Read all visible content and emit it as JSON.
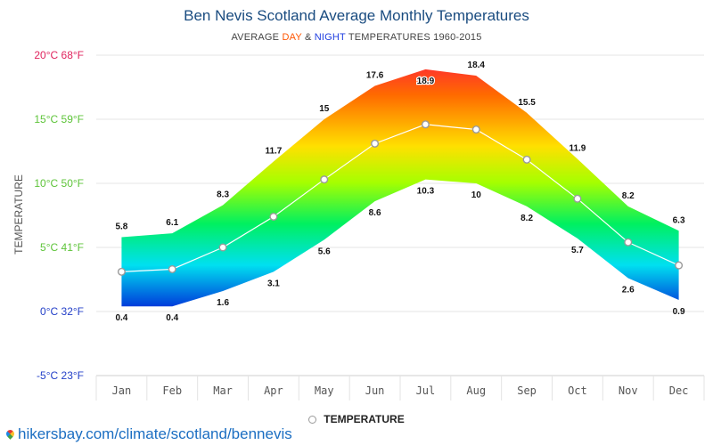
{
  "header": {
    "title": "Ben Nevis Scotland Average Monthly Temperatures",
    "subtitle_prefix": "AVERAGE ",
    "subtitle_day": "DAY",
    "subtitle_amp": " & ",
    "subtitle_night": "NIGHT",
    "subtitle_suffix": " TEMPERATURES 1960-2015"
  },
  "legend": {
    "label": "TEMPERATURE"
  },
  "footer": {
    "source": "hikersbay.com/climate/scotland/bennevis"
  },
  "colors": {
    "day": "#ff5500",
    "night": "#1f3ee0",
    "title": "#1a4c80",
    "link": "#1b6ec2"
  },
  "chart_data": {
    "type": "area",
    "ylabel": "TEMPERATURE",
    "ylim": [
      -5,
      20
    ],
    "y_ticks": [
      {
        "value": 20,
        "label": "20°C 68°F",
        "color": "#e0245e"
      },
      {
        "value": 15,
        "label": "15°C 59°F",
        "color": "#5ec43a"
      },
      {
        "value": 10,
        "label": "10°C 50°F",
        "color": "#5ec43a"
      },
      {
        "value": 5,
        "label": "5°C 41°F",
        "color": "#5ec43a"
      },
      {
        "value": 0,
        "label": "0°C 32°F",
        "color": "#2440c8"
      },
      {
        "value": -5,
        "label": "-5°C 23°F",
        "color": "#2440c8"
      }
    ],
    "categories": [
      "Jan",
      "Feb",
      "Mar",
      "Apr",
      "May",
      "Jun",
      "Jul",
      "Aug",
      "Sep",
      "Oct",
      "Nov",
      "Dec"
    ],
    "series": [
      {
        "name": "day",
        "values": [
          5.8,
          6.1,
          8.3,
          11.7,
          15,
          17.6,
          18.9,
          18.4,
          15.5,
          11.9,
          8.2,
          6.3
        ]
      },
      {
        "name": "night",
        "values": [
          0.4,
          0.4,
          1.6,
          3.1,
          5.6,
          8.6,
          10.3,
          10,
          8.2,
          5.7,
          2.6,
          0.9
        ]
      },
      {
        "name": "TEMPERATURE",
        "values": [
          3.1,
          3.3,
          5.0,
          7.4,
          10.3,
          13.1,
          14.6,
          14.2,
          11.85,
          8.8,
          5.4,
          3.6
        ]
      }
    ],
    "grid": true,
    "legend_position": "bottom-center"
  }
}
